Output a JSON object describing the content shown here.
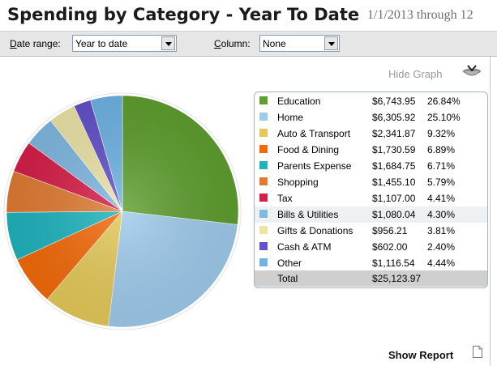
{
  "header": {
    "title": "Spending by Category - Year To Date",
    "date_range_text": "1/1/2013 through 12"
  },
  "toolbar": {
    "date_range_label_accel": "D",
    "date_range_label_rest": "ate range:",
    "date_range_value": "Year to date",
    "column_label_accel": "C",
    "column_label_rest": "olumn:",
    "column_value": "None"
  },
  "graph": {
    "hide_label": "Hide Graph",
    "icon": "graph-bowl-icon"
  },
  "chart_data": {
    "type": "pie",
    "categories": [
      "Education",
      "Home",
      "Auto & Transport",
      "Food & Dining",
      "Parents Expense",
      "Shopping",
      "Tax",
      "Bills & Utilities",
      "Gifts & Donations",
      "Cash & ATM",
      "Other"
    ],
    "amounts": [
      "$6,743.95",
      "$6,305.92",
      "$2,341.87",
      "$1,730.59",
      "$1,684.75",
      "$1,455.10",
      "$1,107.00",
      "$1,080.04",
      "$956.21",
      "$602.00",
      "$1,116.54"
    ],
    "values": [
      26.84,
      25.1,
      9.32,
      6.89,
      6.71,
      5.79,
      4.41,
      4.3,
      3.81,
      2.4,
      4.44
    ],
    "percents": [
      "26.84%",
      "25.10%",
      "9.32%",
      "6.89%",
      "6.71%",
      "5.79%",
      "4.41%",
      "4.30%",
      "3.81%",
      "2.40%",
      "4.44%"
    ],
    "colors": [
      "#5f9e2f",
      "#9fcbec",
      "#e4c95a",
      "#f36a0a",
      "#1fb3bd",
      "#e07b34",
      "#d61f49",
      "#7fb8e0",
      "#ece3a7",
      "#6352c9",
      "#6fb3e3"
    ],
    "highlighted": "Bills & Utilities",
    "total_label": "Total",
    "total_amount": "$25,123.97"
  },
  "footer": {
    "show_report_label": "Show Report",
    "report_icon": "document-icon"
  }
}
